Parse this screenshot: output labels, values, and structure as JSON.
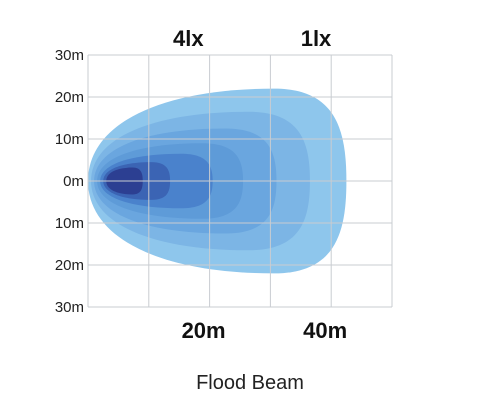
{
  "caption": "Flood Beam",
  "chart_data": {
    "type": "area",
    "title": "",
    "xlabel": "",
    "ylabel": "",
    "x_ticks": [
      {
        "value": 20,
        "label": "20m"
      },
      {
        "value": 40,
        "label": "40m"
      }
    ],
    "y_ticks": [
      {
        "value": 30,
        "label": "30m"
      },
      {
        "value": 20,
        "label": "20m"
      },
      {
        "value": 10,
        "label": "10m"
      },
      {
        "value": 0,
        "label": "0m"
      },
      {
        "value": -10,
        "label": "10m"
      },
      {
        "value": -20,
        "label": "20m"
      },
      {
        "value": -30,
        "label": "30m"
      }
    ],
    "xlim": [
      0,
      50
    ],
    "ylim": [
      -30,
      30
    ],
    "grid": true,
    "lux_labels": [
      {
        "label": "4lx",
        "x": 16.5
      },
      {
        "label": "1lx",
        "x": 37.5
      }
    ],
    "contour_colors": [
      "#8ec6ec",
      "#7cb5e5",
      "#6aa6df",
      "#5e9bd8",
      "#4a82cc",
      "#3b64b4",
      "#2c3f92"
    ],
    "contours": [
      {
        "reach": 42.5,
        "half_width": 22,
        "start": 0
      },
      {
        "reach": 36.5,
        "half_width": 16.5,
        "start": 0.5
      },
      {
        "reach": 31,
        "half_width": 12.5,
        "start": 1
      },
      {
        "reach": 25.5,
        "half_width": 9,
        "start": 1.5
      },
      {
        "reach": 20.5,
        "half_width": 6.5,
        "start": 2
      },
      {
        "reach": 13.5,
        "half_width": 4.5,
        "start": 2.5
      },
      {
        "reach": 9,
        "half_width": 3.2,
        "start": 3
      }
    ]
  }
}
